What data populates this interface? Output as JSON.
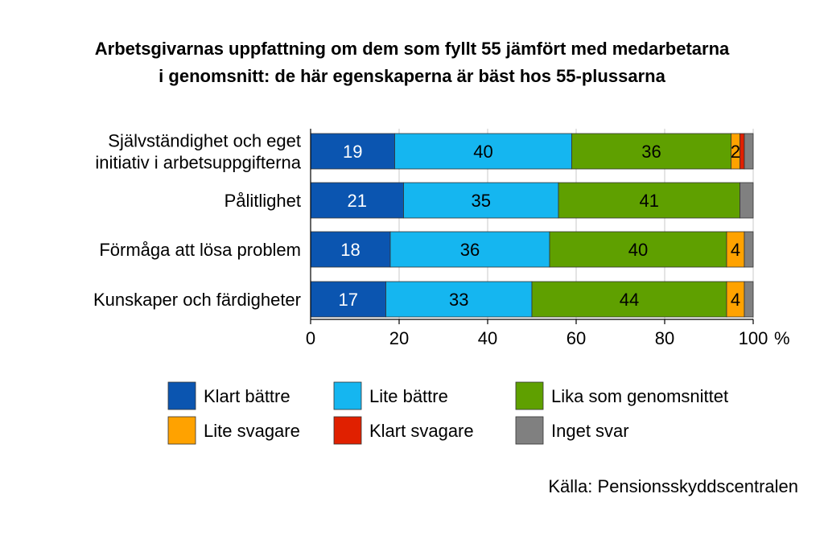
{
  "title_lines": [
    "Arbetsgivarnas uppfattning om dem som fyllt 55 jämfört med medarbetarna",
    "i genomsnitt:  de här egenskaperna är bäst hos 55-plussarna"
  ],
  "source": "Källa: Pensionsskyddscentralen",
  "chart_data": {
    "type": "bar",
    "orientation": "horizontal",
    "stacked": true,
    "categories": [
      [
        "Självständighet och eget",
        "initiativ i arbetsuppgifterna"
      ],
      [
        "Pålitlighet"
      ],
      [
        "Förmåga att lösa problem"
      ],
      [
        "Kunskaper och färdigheter"
      ]
    ],
    "series": [
      {
        "name": "Klart bättre",
        "color": "#0b55b0",
        "values": [
          19,
          21,
          18,
          17
        ],
        "labels": [
          "19",
          "21",
          "18",
          "17"
        ],
        "label_color": "#ffffff"
      },
      {
        "name": "Lite bättre",
        "color": "#15b6f0",
        "values": [
          40,
          35,
          36,
          33
        ],
        "labels": [
          "40",
          "35",
          "36",
          "33"
        ],
        "label_color": "#000000"
      },
      {
        "name": "Lika som genomsnittet",
        "color": "#5fa000",
        "values": [
          36,
          41,
          40,
          44
        ],
        "labels": [
          "36",
          "41",
          "40",
          "44"
        ],
        "label_color": "#000000"
      },
      {
        "name": "Lite svagare",
        "color": "#ffa200",
        "values": [
          2,
          0,
          4,
          4
        ],
        "labels": [
          "2",
          "",
          "4",
          "4"
        ],
        "label_color": "#000000"
      },
      {
        "name": "Klart svagare",
        "color": "#e02000",
        "values": [
          1,
          0,
          0,
          0
        ],
        "labels": [
          "",
          "",
          "",
          ""
        ],
        "label_color": "#000000"
      },
      {
        "name": "Inget svar",
        "color": "#808080",
        "values": [
          2,
          3,
          2,
          2
        ],
        "labels": [
          "",
          "",
          "",
          ""
        ],
        "label_color": "#000000"
      }
    ],
    "x_ticks": [
      "0",
      "20",
      "40",
      "60",
      "80",
      "100"
    ],
    "x_unit": "%",
    "xlim": [
      0,
      100
    ],
    "grid": true,
    "legend_position": "bottom"
  }
}
